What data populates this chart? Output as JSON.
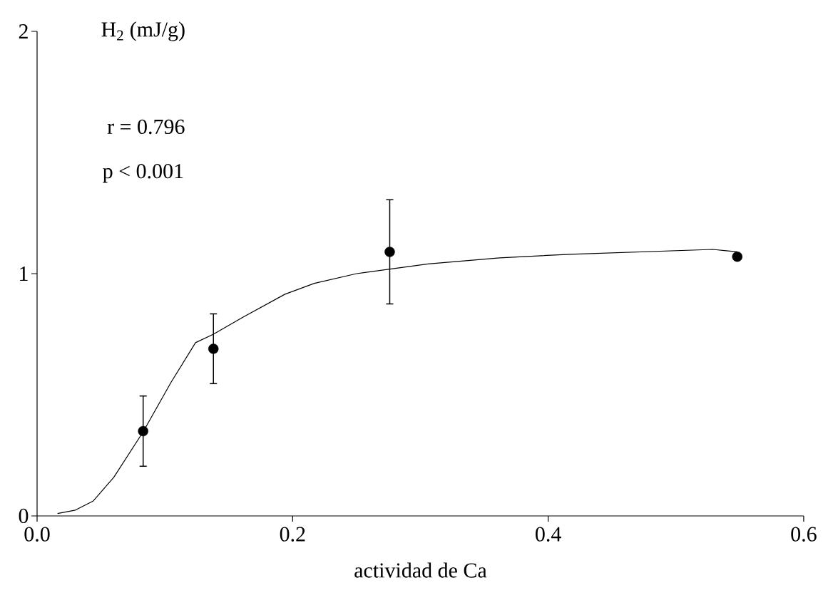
{
  "chart_data": {
    "type": "scatter",
    "ylabel": "H$_{2}$ (mJ/g)",
    "xlabel": "actividad de Ca",
    "annotations": [
      "r = 0.796",
      "p < 0.001"
    ],
    "xlim": [
      0,
      0.6
    ],
    "ylim": [
      0,
      2
    ],
    "xticks": [
      {
        "value": 0,
        "label": "0.0"
      },
      0.2,
      0.4,
      0.6
    ],
    "yticks": [
      0,
      1,
      2
    ],
    "grid": false,
    "series": [
      {
        "type": "scatter",
        "color": "#000000",
        "marker": "circle",
        "x": [
          0.083,
          0.138,
          0.276,
          0.548
        ],
        "values": [
          0.35,
          0.69,
          1.09,
          1.07
        ],
        "errors": [
          0.145,
          0.144,
          0.215,
          null
        ]
      },
      {
        "type": "line",
        "color": "#000000",
        "marker": "none",
        "line_style": "solid",
        "x": [
          0.016,
          0.03,
          0.044,
          0.06,
          0.083,
          0.105,
          0.124,
          0.138,
          0.161,
          0.194,
          0.217,
          0.25,
          0.306,
          0.362,
          0.417,
          0.473,
          0.529,
          0.548
        ],
        "values": [
          0.01,
          0.024,
          0.062,
          0.159,
          0.347,
          0.553,
          0.715,
          0.75,
          0.82,
          0.915,
          0.96,
          1.0,
          1.04,
          1.065,
          1.08,
          1.09,
          1.1,
          1.09
        ]
      }
    ]
  }
}
